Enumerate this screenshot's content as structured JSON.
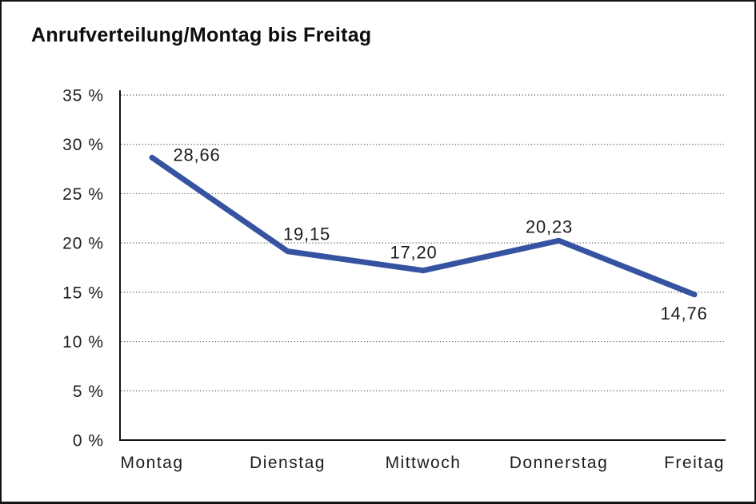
{
  "window": {
    "background": "#ffffff",
    "frame_border_color": "#141414"
  },
  "chart_data": {
    "type": "line",
    "title": "Anrufverteilung/Montag bis Freitag",
    "categories": [
      "Montag",
      "Dienstag",
      "Mittwoch",
      "Donnerstag",
      "Freitag"
    ],
    "series": [
      {
        "name": "Anrufverteilung",
        "values": [
          28.66,
          19.15,
          17.2,
          20.23,
          14.76
        ]
      }
    ],
    "point_labels": [
      "28,66",
      "19,15",
      "17,20",
      "20,23",
      "14,76"
    ],
    "point_label_positions": [
      "above-right",
      "above",
      "above",
      "above",
      "below"
    ],
    "y_tick_labels": [
      "0 %",
      "5 %",
      "10 %",
      "15 %",
      "20 %",
      "25 %",
      "30 %",
      "35 %"
    ],
    "ylim": [
      0,
      35
    ],
    "y_step": 5,
    "xlabel": "",
    "ylabel": "",
    "grid": "horizontal-dotted",
    "legend": "none",
    "colors": {
      "line": "#3553A0",
      "gridline": "#5a5a5a",
      "axis": "#141414",
      "text": "#1c1c1c"
    }
  }
}
